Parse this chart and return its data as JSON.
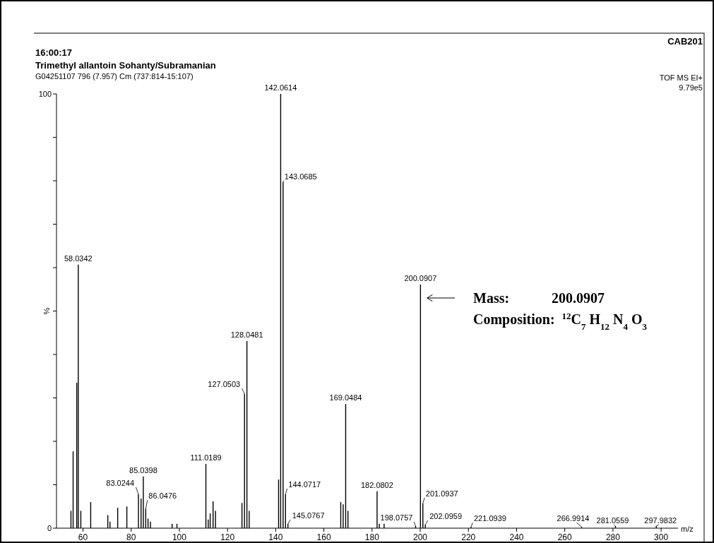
{
  "chart_data": {
    "type": "bar",
    "title": "Trimethyl allantoin Sohanty/Subramanian",
    "subtitle": "16:00:17",
    "xlabel": "m/z",
    "ylabel": "%",
    "x": [
      55,
      55.9,
      57.4,
      58.0342,
      59.1,
      63.2,
      70.3,
      71.2,
      74.4,
      78.2,
      83.0244,
      84.1,
      85.0398,
      86.0476,
      87,
      88,
      97,
      99,
      111.0189,
      112,
      112.8,
      114,
      115,
      126,
      127.0503,
      128.0481,
      129,
      141.2,
      142.0614,
      143.0685,
      144.0717,
      145.0767,
      167,
      168,
      169.0484,
      170,
      182.0802,
      183,
      185,
      198.0757,
      200.0907,
      201.0937,
      202.0959,
      221.0939,
      266.9914,
      281.0559,
      297.9832
    ],
    "values": [
      4,
      17.7,
      33.5,
      60.7,
      4,
      6,
      3,
      1.5,
      4.7,
      5,
      7.8,
      6.8,
      11.9,
      4.5,
      2.2,
      1.5,
      1,
      1,
      14.8,
      2,
      3.4,
      6.2,
      4,
      5.8,
      30.9,
      43.1,
      4,
      11.2,
      100,
      79.7,
      7.8,
      1,
      6,
      5.5,
      28.6,
      4,
      8.5,
      1,
      1,
      0.5,
      56.1,
      5.7,
      0.8,
      0.3,
      0.3,
      0.5,
      0.5
    ],
    "color": "#000000",
    "xlim": [
      49,
      307
    ],
    "ylim": [
      0,
      100
    ],
    "xticks": [
      60,
      80,
      100,
      120,
      140,
      160,
      180,
      200,
      220,
      240,
      260,
      280,
      300
    ],
    "yticks": [
      0,
      {
        "value": 10,
        "label": null
      },
      {
        "value": 20,
        "label": null
      },
      {
        "value": 30,
        "label": null
      },
      {
        "value": 40,
        "label": null
      },
      {
        "value": 50,
        "label": null
      },
      {
        "value": 60,
        "label": null
      },
      {
        "value": 70,
        "label": null
      },
      {
        "value": 80,
        "label": null
      },
      {
        "value": 90,
        "label": null
      },
      100
    ],
    "annotations": [
      {
        "text": "142.0614",
        "x": 142.0614,
        "y": 100
      },
      {
        "text": "143.0685",
        "x": 143.0685,
        "y": 79.7
      },
      {
        "text": "58.0342",
        "x": 58.0342,
        "y": 60.7
      },
      {
        "text": "200.0907",
        "x": 200.0907,
        "y": 56.1
      },
      {
        "text": "128.0481",
        "x": 128.0481,
        "y": 43.1
      },
      {
        "text": "127.0503",
        "x": 127.0503,
        "y": 30.9
      },
      {
        "text": "169.0484",
        "x": 169.0484,
        "y": 28.6
      },
      {
        "text": "111.0189",
        "x": 111.0189,
        "y": 14.8
      },
      {
        "text": "85.0398",
        "x": 85.0398,
        "y": 11.9
      },
      {
        "text": "83.0244",
        "x": 83.0244,
        "y": 7.8
      },
      {
        "text": "86.0476",
        "x": 86.0476,
        "y": 4.5
      },
      {
        "text": "144.0717",
        "x": 144.0717,
        "y": 7.8
      },
      {
        "text": "145.0767",
        "x": 145.0767,
        "y": 1
      },
      {
        "text": "182.0802",
        "x": 182.0802,
        "y": 8.5
      },
      {
        "text": "198.0757",
        "x": 198.0757,
        "y": 0.5
      },
      {
        "text": "201.0937",
        "x": 201.0937,
        "y": 5.7
      },
      {
        "text": "202.0959",
        "x": 202.0959,
        "y": 0.8
      },
      {
        "text": "221.0939",
        "x": 221.0939,
        "y": 0.3
      },
      {
        "text": "266.9914",
        "x": 266.9914,
        "y": 0.3
      },
      {
        "text": "281.0559",
        "x": 281.0559,
        "y": 0.5
      },
      {
        "text": "297.9832",
        "x": 297.9832,
        "y": 0.5
      },
      "CAB201",
      "G04251107 796 (7.957) Cm (737:814-15:107)",
      "TOF MS EI+",
      "9.79e5",
      "Mass:            200.0907",
      "Composition:  $^{12}$C$_{7}$ H$_{12}$ N$_{4}$ O$_{3}$"
    ]
  }
}
